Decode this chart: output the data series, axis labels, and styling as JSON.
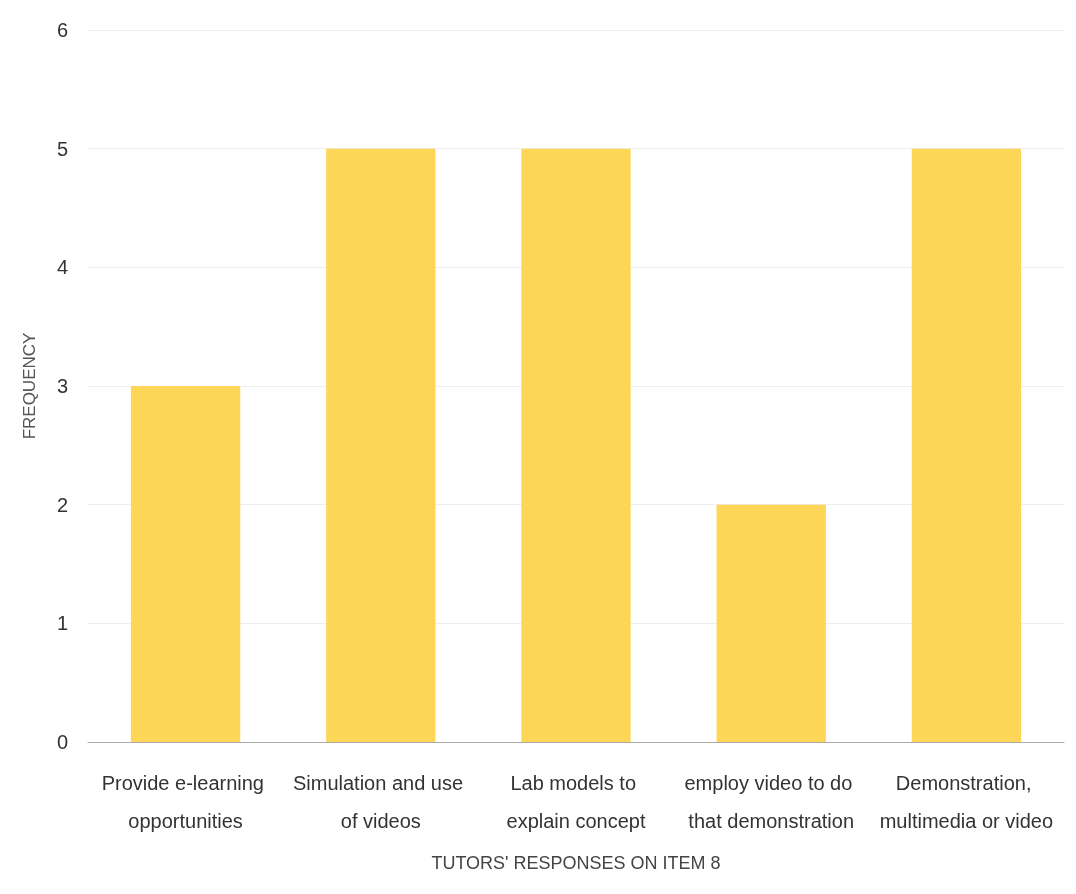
{
  "chart_data": {
    "type": "bar",
    "xlabel": "TUTORS' RESPONSES ON ITEM 8",
    "ylabel": "FREQUENCY",
    "categories": [
      "Provide e-learning opportunities",
      "Simulation and use of videos",
      "Lab models to explain concept",
      "employ video to do that demonstration",
      "Demonstration, multimedia or video"
    ],
    "values": [
      3,
      5,
      5,
      2,
      5
    ],
    "color": "#fdd44f",
    "ylim": [
      0,
      6
    ],
    "yticks": [
      0,
      1,
      2,
      3,
      4,
      5,
      6
    ],
    "grid": "y"
  }
}
